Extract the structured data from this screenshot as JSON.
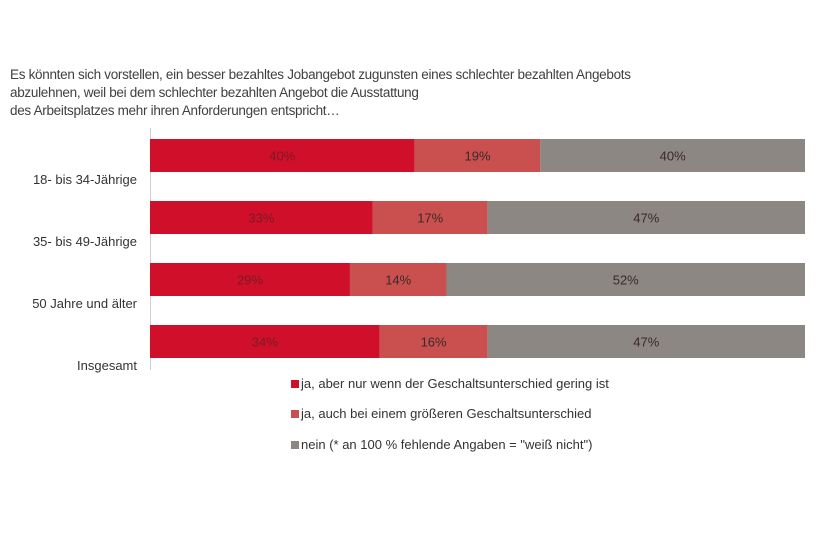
{
  "chart_data": {
    "type": "bar",
    "orientation": "horizontal",
    "stacked": true,
    "title_lines": [
      "Es könnten sich vorstellen, ein besser bezahltes Jobangebot zugunsten eines schlechter bezahlten Angebots",
      "abzulehnen, weil bei dem schlechter bezahlten Angebot die Ausstattung",
      "des Arbeitsplatzes mehr ihren Anforderungen entspricht…"
    ],
    "categories": [
      "18- bis 34-Jährige",
      "35- bis 49-Jährige",
      "50 Jahre und älter",
      "Insgesamt"
    ],
    "series": [
      {
        "name": "ja, aber nur wenn der Geschaltsunterschied gering ist",
        "values": [
          40,
          33,
          29,
          34
        ],
        "color": "#d0102a"
      },
      {
        "name": "ja, auch bei einem größeren Geschaltsunterschied",
        "values": [
          19,
          17,
          14,
          16
        ],
        "color": "#c9504f"
      },
      {
        "name": "nein (* an 100 % fehlende Angaben = \"weiß nicht\")",
        "values": [
          40,
          47,
          52,
          47
        ],
        "color": "#8c8783"
      }
    ],
    "value_suffix": "%",
    "grid": false,
    "legend_position": "bottom"
  }
}
